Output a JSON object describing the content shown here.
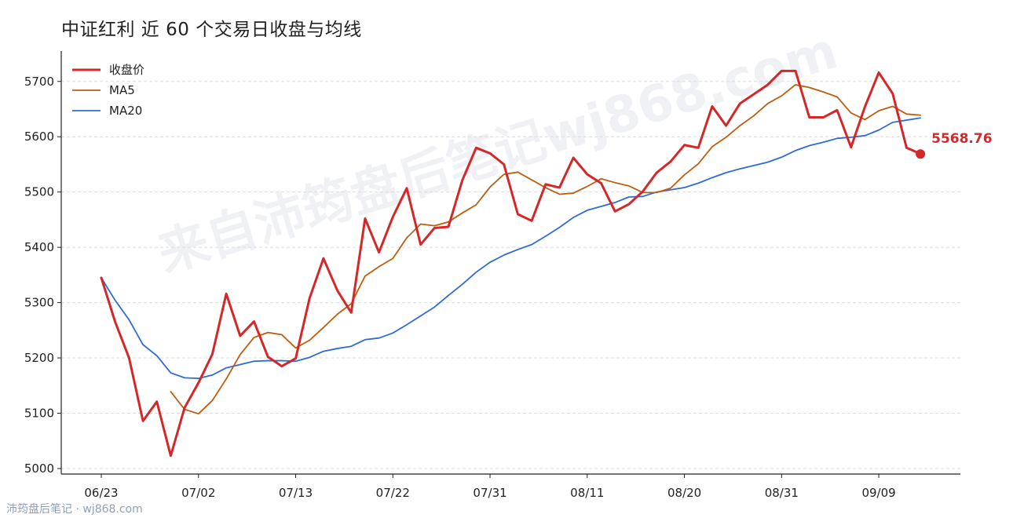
{
  "title": "中证红利 近 60 个交易日收盘与均线",
  "watermark": "来自沛筠盘后笔记wj868.com",
  "footer": "沛筠盘后笔记 · wj868.com",
  "colors": {
    "close": "#d62728",
    "ma5": "#bd5e0f",
    "ma20": "#2f6bd8"
  },
  "chart_data": {
    "type": "line",
    "title": "中证红利 近 60 个交易日收盘与均线",
    "xlabel": "",
    "ylabel": "",
    "ylim": [
      4990,
      5755
    ],
    "yticks": [
      5000,
      5100,
      5200,
      5300,
      5400,
      5500,
      5600,
      5700
    ],
    "xtick_labels": [
      {
        "index": 0,
        "label": "06/23"
      },
      {
        "index": 7,
        "label": "07/02"
      },
      {
        "index": 14,
        "label": "07/13"
      },
      {
        "index": 21,
        "label": "07/22"
      },
      {
        "index": 28,
        "label": "07/31"
      },
      {
        "index": 35,
        "label": "08/11"
      },
      {
        "index": 42,
        "label": "08/20"
      },
      {
        "index": 49,
        "label": "08/31"
      },
      {
        "index": 56,
        "label": "09/09"
      }
    ],
    "grid": "horizontal-dashed",
    "legend": "top-left",
    "series": [
      {
        "name": "收盘价",
        "key": "close",
        "values": [
          5345,
          5265,
          5200,
          5086,
          5121,
          5023,
          5110,
          5155,
          5207,
          5316,
          5240,
          5266,
          5202,
          5185,
          5199,
          5308,
          5380,
          5322,
          5282,
          5452,
          5391,
          5455,
          5507,
          5405,
          5435,
          5437,
          5521,
          5580,
          5570,
          5550,
          5460,
          5448,
          5514,
          5508,
          5562,
          5532,
          5516,
          5465,
          5478,
          5501,
          5535,
          5555,
          5585,
          5580,
          5655,
          5620,
          5660,
          5677,
          5694,
          5719,
          5719,
          5635,
          5635,
          5648,
          5581,
          5654,
          5716,
          5678,
          5580,
          5569
        ]
      },
      {
        "name": "MA5",
        "key": "ma5",
        "values": [
          5345,
          null,
          null,
          null,
          null,
          5139,
          5107,
          5099,
          5123,
          5162,
          5206,
          5237,
          5246,
          5242,
          5218,
          5232,
          5255,
          5279,
          5298,
          5348,
          5365,
          5380,
          5417,
          5442,
          5439,
          5446,
          5462,
          5477,
          5509,
          5532,
          5536,
          5522,
          5508,
          5496,
          5498,
          5510,
          5524,
          5517,
          5511,
          5499,
          5499,
          5507,
          5531,
          5551,
          5582,
          5599,
          5620,
          5638,
          5660,
          5674,
          5694,
          5689,
          5681,
          5672,
          5643,
          5631,
          5647,
          5655,
          5641,
          5639
        ]
      },
      {
        "name": "MA20",
        "key": "ma20",
        "values": [
          5345,
          5304,
          5269,
          5224,
          5204,
          5173,
          5164,
          5163,
          5169,
          5182,
          5188,
          5194,
          5195,
          5195,
          5194,
          5201,
          5212,
          5217,
          5221,
          5233,
          5236,
          5245,
          5260,
          5276,
          5292,
          5313,
          5333,
          5355,
          5373,
          5386,
          5396,
          5405,
          5420,
          5436,
          5454,
          5467,
          5474,
          5481,
          5491,
          5492,
          5500,
          5504,
          5508,
          5516,
          5526,
          5535,
          5542,
          5548,
          5554,
          5563,
          5575,
          5584,
          5590,
          5597,
          5599,
          5602,
          5612,
          5626,
          5630,
          5634
        ]
      }
    ],
    "last_value": {
      "label": "5568.76",
      "value": 5568.76
    }
  }
}
